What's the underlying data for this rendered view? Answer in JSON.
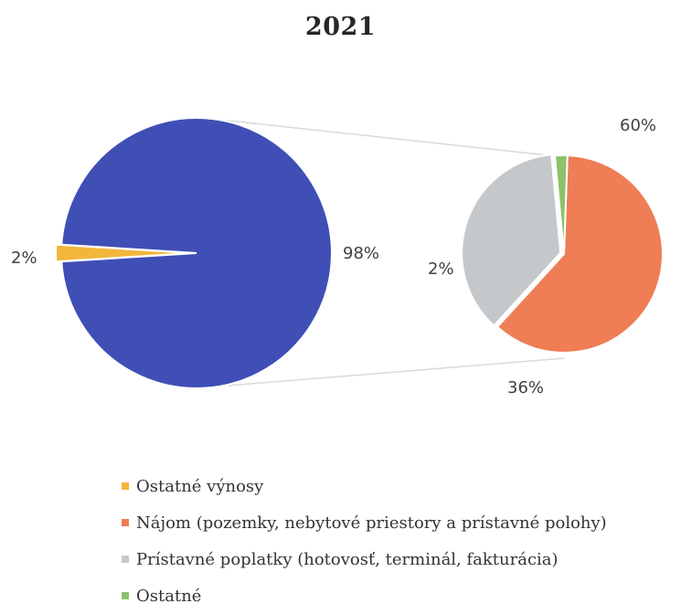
{
  "chart_data": {
    "type": "pie",
    "title": "2021",
    "main_pie": {
      "slices": [
        {
          "label": "Ostatné výnosy",
          "value": 2,
          "value_label": "2%",
          "color": "#f2b63a"
        },
        {
          "label": "",
          "value": 98,
          "value_label": "98%",
          "color": "#3f4fb5"
        }
      ]
    },
    "secondary_pie": {
      "slices": [
        {
          "label": "Nájom (pozemky, nebytové priestory a prístavné polohy)",
          "value": 60,
          "value_label": "60%",
          "color": "#ef7d56"
        },
        {
          "label": "Prístavné poplatky (hotovosť, terminál, fakturácia)",
          "value": 36,
          "value_label": "36%",
          "color": "#c4c8ca"
        },
        {
          "label": "Ostatné",
          "value": 2,
          "value_label": "2%",
          "color": "#8dc26a"
        }
      ]
    },
    "legend": [
      {
        "label": "Ostatné výnosy",
        "color": "#f2b63a"
      },
      {
        "label": "Nájom (pozemky, nebytové priestory a prístavné polohy)",
        "color": "#ef7d56"
      },
      {
        "label": "Prístavné poplatky (hotovosť, terminál, fakturácia)",
        "color": "#c4c8ca"
      },
      {
        "label": "Ostatné",
        "color": "#8dc26a"
      }
    ],
    "legend_position": "bottom"
  }
}
